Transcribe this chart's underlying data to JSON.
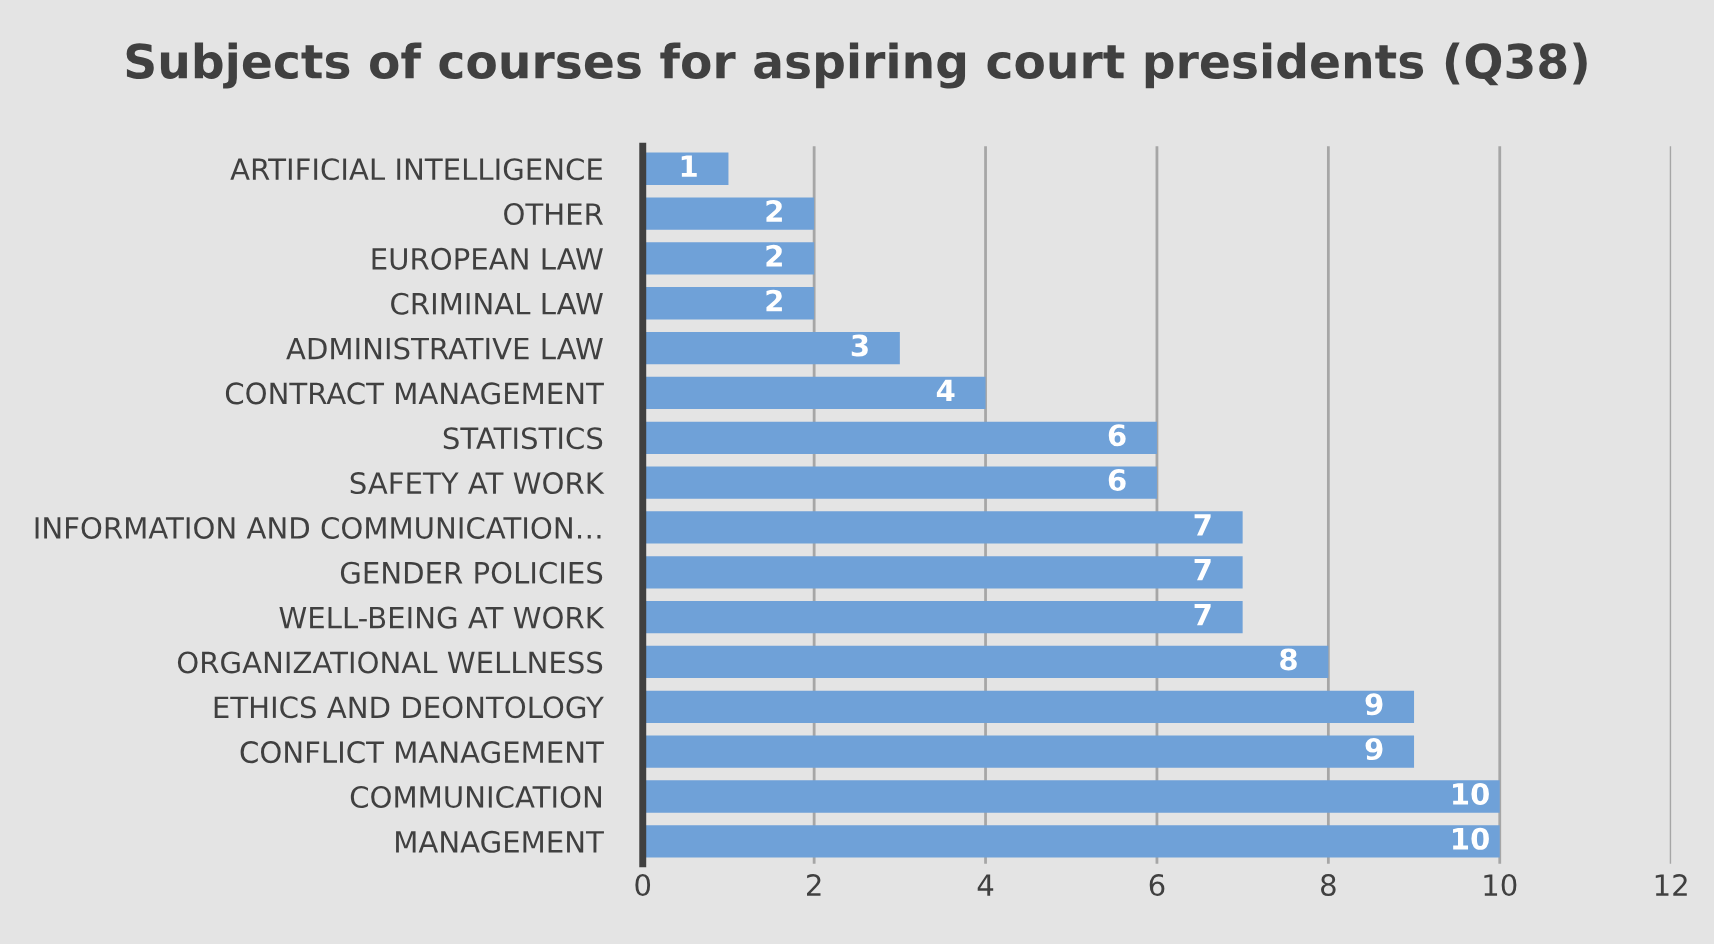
{
  "chart_data": {
    "type": "bar",
    "orientation": "horizontal",
    "title": "Subjects of courses for aspiring court presidents (Q38)",
    "categories": [
      "ARTIFICIAL INTELLIGENCE",
      "OTHER",
      "EUROPEAN LAW",
      "CRIMINAL LAW",
      "ADMINISTRATIVE LAW",
      "CONTRACT MANAGEMENT",
      "STATISTICS",
      "SAFETY AT WORK",
      "INFORMATION AND COMMUNICATION…",
      "GENDER POLICIES",
      "WELL-BEING AT WORK",
      "ORGANIZATIONAL WELLNESS",
      "ETHICS AND DEONTOLOGY",
      "CONFLICT MANAGEMENT",
      "COMMUNICATION",
      "MANAGEMENT"
    ],
    "values": [
      1,
      2,
      2,
      2,
      3,
      4,
      6,
      6,
      7,
      7,
      7,
      8,
      9,
      9,
      10,
      10
    ],
    "color": "#6fa1d8",
    "xlim": [
      0,
      12
    ],
    "xticks": [
      0,
      2,
      4,
      6,
      8,
      10,
      12
    ],
    "grid": "x",
    "data_labels": true
  }
}
